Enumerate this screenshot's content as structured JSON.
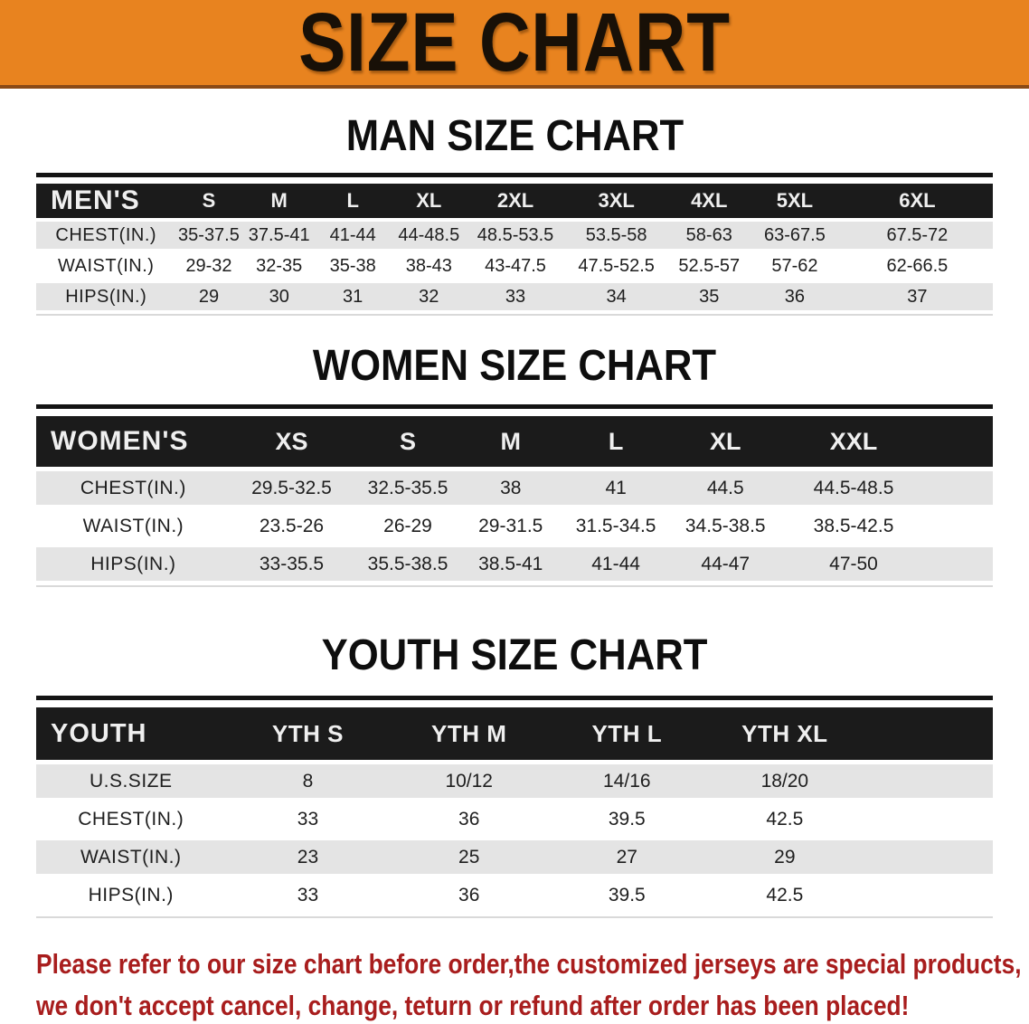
{
  "banner": {
    "title": "SIZE CHART"
  },
  "sections": [
    {
      "heading": "MAN SIZE CHART",
      "table": {
        "label": "MEN'S",
        "columns": [
          "S",
          "M",
          "L",
          "XL",
          "2XL",
          "3XL",
          "4XL",
          "5XL",
          "6XL"
        ],
        "rows": [
          {
            "label": "CHEST(IN.)",
            "values": [
              "35-37.5",
              "37.5-41",
              "41-44",
              "44-48.5",
              "48.5-53.5",
              "53.5-58",
              "58-63",
              "63-67.5",
              "67.5-72"
            ]
          },
          {
            "label": "WAIST(IN.)",
            "values": [
              "29-32",
              "32-35",
              "35-38",
              "38-43",
              "43-47.5",
              "47.5-52.5",
              "52.5-57",
              "57-62",
              "62-66.5"
            ]
          },
          {
            "label": "HIPS(IN.)",
            "values": [
              "29",
              "30",
              "31",
              "32",
              "33",
              "34",
              "35",
              "36",
              "37"
            ]
          }
        ]
      }
    },
    {
      "heading": "WOMEN SIZE CHART",
      "table": {
        "label": "WOMEN'S",
        "columns": [
          "XS",
          "S",
          "M",
          "L",
          "XL",
          "XXL"
        ],
        "rows": [
          {
            "label": "CHEST(IN.)",
            "values": [
              "29.5-32.5",
              "32.5-35.5",
              "38",
              "41",
              "44.5",
              "44.5-48.5"
            ]
          },
          {
            "label": "WAIST(IN.)",
            "values": [
              "23.5-26",
              "26-29",
              "29-31.5",
              "31.5-34.5",
              "34.5-38.5",
              "38.5-42.5"
            ]
          },
          {
            "label": "HIPS(IN.)",
            "values": [
              "33-35.5",
              "35.5-38.5",
              "38.5-41",
              "41-44",
              "44-47",
              "47-50"
            ]
          }
        ]
      }
    },
    {
      "heading": "YOUTH SIZE CHART",
      "table": {
        "label": "YOUTH",
        "columns": [
          "YTH S",
          "YTH M",
          "YTH L",
          "YTH XL"
        ],
        "rows": [
          {
            "label": "U.S.SIZE",
            "values": [
              "8",
              "10/12",
              "14/16",
              "18/20"
            ]
          },
          {
            "label": "CHEST(IN.)",
            "values": [
              "33",
              "36",
              "39.5",
              "42.5"
            ]
          },
          {
            "label": "WAIST(IN.)",
            "values": [
              "23",
              "25",
              "27",
              "29"
            ]
          },
          {
            "label": "HIPS(IN.)",
            "values": [
              "33",
              "36",
              "39.5",
              "42.5"
            ]
          }
        ]
      }
    }
  ],
  "footer": {
    "line1": "Please refer to our size chart before order,the customized jerseys are special products,",
    "line2": "we don't accept cancel, change, teturn or refund after order has been placed!"
  },
  "colors": {
    "banner_bg": "#E8831F",
    "banner_border": "#8A4A16",
    "header_band": "#1B1B1B",
    "row_shade": "#E4E4E4",
    "footer_text": "#A81D1D"
  }
}
